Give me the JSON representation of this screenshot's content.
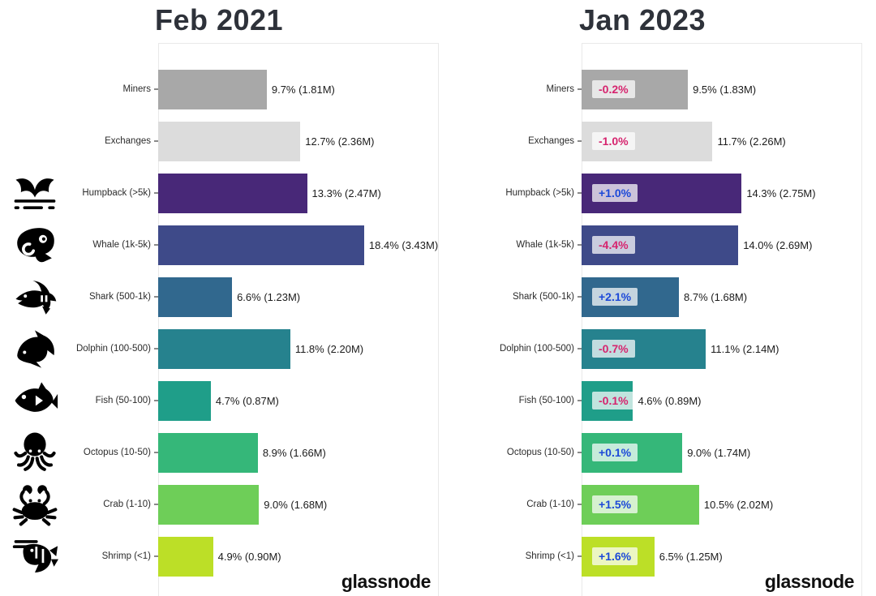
{
  "chart_data": [
    {
      "type": "bar",
      "orientation": "horizontal",
      "title": "Feb 2021",
      "watermark": "glassnode",
      "xlim": [
        0,
        25
      ],
      "grid": false,
      "categories": [
        "Miners",
        "Exchanges",
        "Humpback (>5k)",
        "Whale (1k-5k)",
        "Shark (500-1k)",
        "Dolphin (100-500)",
        "Fish (50-100)",
        "Octopus (10-50)",
        "Crab (1-10)",
        "Shrimp (<1)"
      ],
      "values_percent": [
        9.7,
        12.7,
        13.3,
        18.4,
        6.6,
        11.8,
        4.7,
        8.9,
        9.0,
        4.9
      ],
      "supply_btc_millions": [
        1.81,
        2.36,
        2.47,
        3.43,
        1.23,
        2.2,
        0.87,
        1.66,
        1.68,
        0.9
      ],
      "value_labels": [
        "9.7% (1.81M)",
        "12.7% (2.36M)",
        "13.3% (2.47M)",
        "18.4% (3.43M)",
        "6.6% (1.23M)",
        "11.8% (2.20M)",
        "4.7% (0.87M)",
        "8.9% (1.66M)",
        "9.0% (1.68M)",
        "4.9% (0.90M)"
      ]
    },
    {
      "type": "bar",
      "orientation": "horizontal",
      "title": "Jan 2023",
      "watermark": "glassnode",
      "xlim": [
        0,
        25
      ],
      "grid": false,
      "categories": [
        "Miners",
        "Exchanges",
        "Humpback (>5k)",
        "Whale (1k-5k)",
        "Shark (500-1k)",
        "Dolphin (100-500)",
        "Fish (50-100)",
        "Octopus (10-50)",
        "Crab (1-10)",
        "Shrimp (<1)"
      ],
      "values_percent": [
        9.5,
        11.7,
        14.3,
        14.0,
        8.7,
        11.1,
        4.6,
        9.0,
        10.5,
        6.5
      ],
      "supply_btc_millions": [
        1.83,
        2.26,
        2.75,
        2.69,
        1.68,
        2.14,
        0.89,
        1.74,
        2.02,
        1.25
      ],
      "value_labels": [
        "9.5% (1.83M)",
        "11.7% (2.26M)",
        "14.3% (2.75M)",
        "14.0% (2.69M)",
        "8.7% (1.68M)",
        "11.1% (2.14M)",
        "4.6% (0.89M)",
        "9.0% (1.74M)",
        "10.5% (2.02M)",
        "6.5% (1.25M)"
      ],
      "deltas": [
        "-0.2%",
        "-1.0%",
        "+1.0%",
        "-4.4%",
        "+2.1%",
        "-0.7%",
        "-0.1%",
        "+0.1%",
        "+1.5%",
        "+1.6%"
      ]
    }
  ],
  "bar_colors": [
    "#a8a8a8",
    "#dcdcdc",
    "#482878",
    "#3e4a89",
    "#31688e",
    "#26828e",
    "#1f9e89",
    "#35b779",
    "#6ece58",
    "#bcdf27"
  ],
  "colors": {
    "positive_delta_text": "#1c49d8",
    "negative_delta_text": "#d6246e",
    "badge_background": "rgba(255,255,255,0.72)",
    "title_text": "#2e323a",
    "panel_border": "#e9e9e9",
    "icon_fill": "#000000"
  },
  "icons": [
    "humpback-tail-icon",
    "whale-icon",
    "shark-icon",
    "dolphin-icon",
    "fish-icon",
    "octopus-icon",
    "crab-icon",
    "shrimp-icon"
  ]
}
